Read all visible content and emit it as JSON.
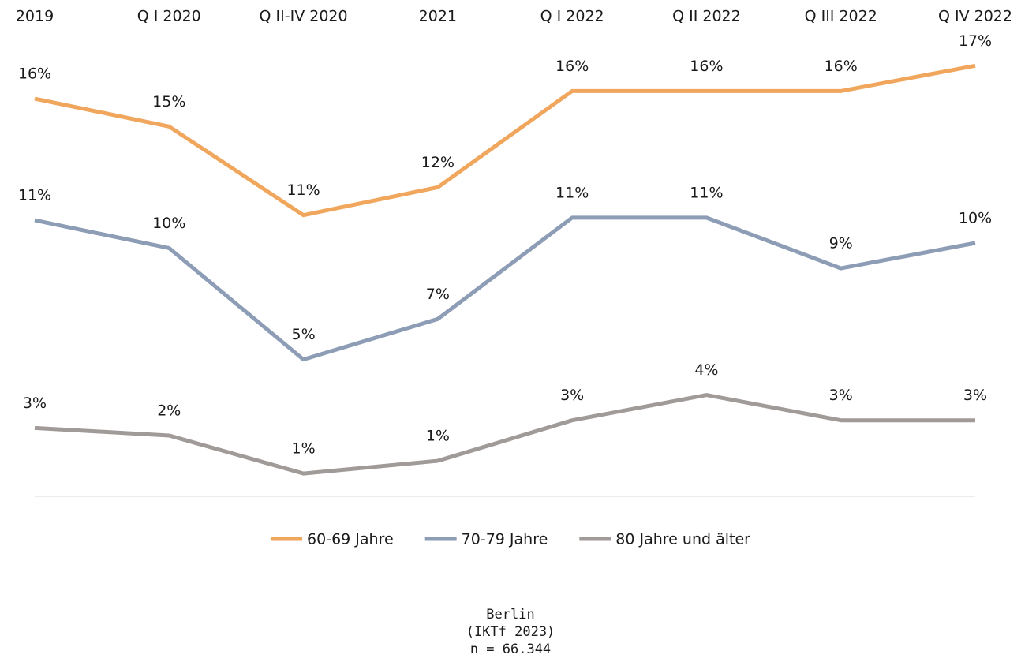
{
  "chart_data": {
    "type": "line",
    "categories": [
      "2019",
      "Q I 2020",
      "Q II-IV 2020",
      "2021",
      "Q I 2022",
      "Q II 2022",
      "Q III 2022",
      "Q IV 2022"
    ],
    "series": [
      {
        "name": "60-69 Jahre",
        "color": "#f0a65c",
        "values": [
          15.7,
          14.6,
          11.1,
          12.2,
          16.0,
          16.0,
          16.0,
          17.0
        ],
        "value_labels": [
          "16%",
          "15%",
          "11%",
          "12%",
          "16%",
          "16%",
          "16%",
          "17%"
        ]
      },
      {
        "name": "70-79 Jahre",
        "color": "#8d9db5",
        "values": [
          10.9,
          9.8,
          5.4,
          7.0,
          11.0,
          11.0,
          9.0,
          10.0
        ],
        "value_labels": [
          "11%",
          "10%",
          "5%",
          "7%",
          "11%",
          "11%",
          "9%",
          "10%"
        ]
      },
      {
        "name": "80 Jahre und älter",
        "color": "#a09a98",
        "values": [
          2.7,
          2.4,
          0.9,
          1.4,
          3.0,
          4.0,
          3.0,
          3.0
        ],
        "value_labels": [
          "3%",
          "2%",
          "1%",
          "1%",
          "3%",
          "4%",
          "3%",
          "3%"
        ]
      }
    ],
    "legend": "bottom",
    "source": [
      "Berlin",
      "(IKTf 2023)",
      "n = 66.344"
    ]
  }
}
